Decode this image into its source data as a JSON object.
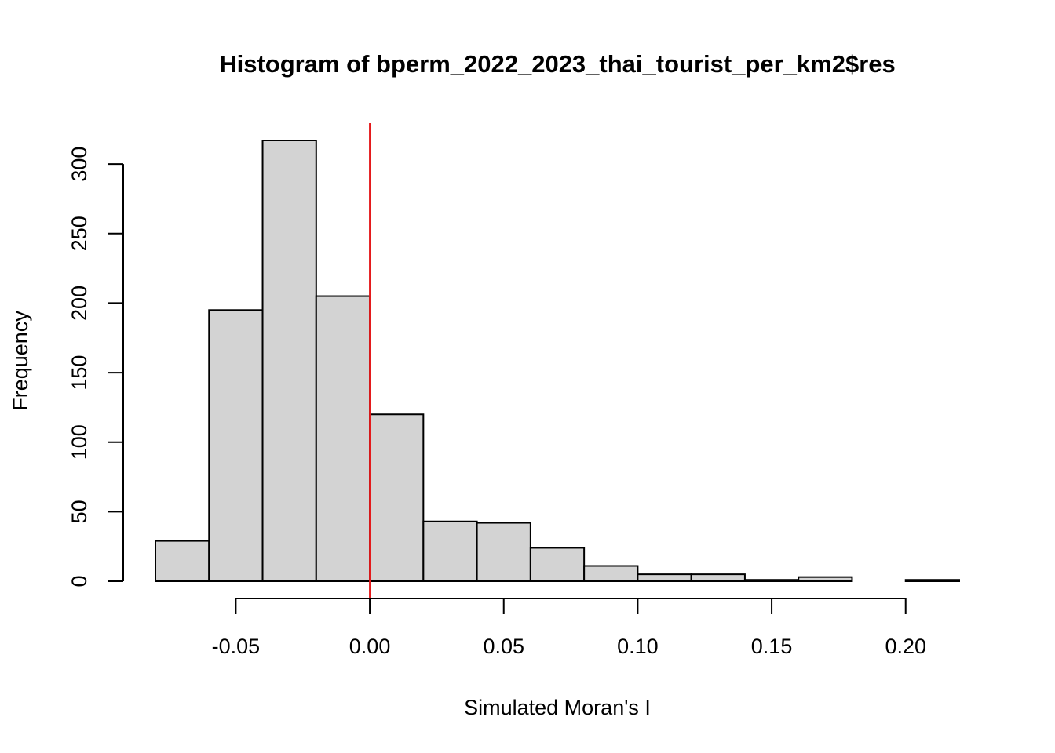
{
  "chart_data": {
    "type": "histogram",
    "title": "Histogram of bperm_2022_2023_thai_tourist_per_km2$res",
    "xlabel": "Simulated Moran's I",
    "ylabel": "Frequency",
    "bins": [
      {
        "start": -0.08,
        "end": -0.06,
        "count": 29
      },
      {
        "start": -0.06,
        "end": -0.04,
        "count": 195
      },
      {
        "start": -0.04,
        "end": -0.02,
        "count": 317
      },
      {
        "start": -0.02,
        "end": 0.0,
        "count": 205
      },
      {
        "start": 0.0,
        "end": 0.02,
        "count": 120
      },
      {
        "start": 0.02,
        "end": 0.04,
        "count": 43
      },
      {
        "start": 0.04,
        "end": 0.06,
        "count": 42
      },
      {
        "start": 0.06,
        "end": 0.08,
        "count": 24
      },
      {
        "start": 0.08,
        "end": 0.1,
        "count": 11
      },
      {
        "start": 0.1,
        "end": 0.12,
        "count": 5
      },
      {
        "start": 0.12,
        "end": 0.14,
        "count": 5
      },
      {
        "start": 0.14,
        "end": 0.16,
        "count": 1
      },
      {
        "start": 0.16,
        "end": 0.18,
        "count": 3
      },
      {
        "start": 0.18,
        "end": 0.2,
        "count": 0
      },
      {
        "start": 0.2,
        "end": 0.22,
        "count": 1
      }
    ],
    "x_ticks": [
      -0.05,
      0.0,
      0.05,
      0.1,
      0.15,
      0.2
    ],
    "x_tick_labels": [
      "-0.05",
      "0.00",
      "0.05",
      "0.10",
      "0.15",
      "0.20"
    ],
    "y_ticks": [
      0,
      50,
      100,
      150,
      200,
      250,
      300
    ],
    "y_tick_labels": [
      "0",
      "50",
      "100",
      "150",
      "200",
      "250",
      "300"
    ],
    "xlim": [
      -0.08,
      0.22
    ],
    "ylim": [
      0,
      317
    ],
    "reference_line": {
      "x": 0.0,
      "color": "#e41a1c"
    },
    "bar_fill": "#d3d3d3",
    "grid": false
  }
}
